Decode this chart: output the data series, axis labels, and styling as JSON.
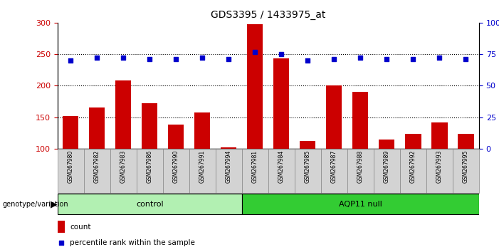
{
  "title": "GDS3395 / 1433975_at",
  "samples": [
    "GSM267980",
    "GSM267982",
    "GSM267983",
    "GSM267986",
    "GSM267990",
    "GSM267991",
    "GSM267994",
    "GSM267981",
    "GSM267984",
    "GSM267985",
    "GSM267987",
    "GSM267988",
    "GSM267989",
    "GSM267992",
    "GSM267993",
    "GSM267995"
  ],
  "counts": [
    152,
    165,
    208,
    172,
    138,
    157,
    102,
    298,
    243,
    112,
    200,
    190,
    115,
    124,
    142,
    124
  ],
  "percentile_ranks": [
    70,
    72,
    72,
    71,
    71,
    72,
    71,
    77,
    75,
    70,
    71,
    72,
    71,
    71,
    72,
    71
  ],
  "groups": {
    "control": [
      0,
      1,
      2,
      3,
      4,
      5,
      6
    ],
    "AQP11 null": [
      7,
      8,
      9,
      10,
      11,
      12,
      13,
      14,
      15
    ]
  },
  "bar_color": "#cc0000",
  "scatter_color": "#0000cc",
  "left_ylim": [
    100,
    300
  ],
  "right_ylim": [
    0,
    100
  ],
  "left_yticks": [
    100,
    150,
    200,
    250,
    300
  ],
  "right_yticks": [
    0,
    25,
    50,
    75,
    100
  ],
  "grid_lines": [
    150,
    200,
    250
  ],
  "control_color": "#b2f0b2",
  "aqp11_color": "#33cc33",
  "label_bg_color": "#d3d3d3",
  "legend_count_color": "#cc0000",
  "legend_pct_color": "#0000cc"
}
